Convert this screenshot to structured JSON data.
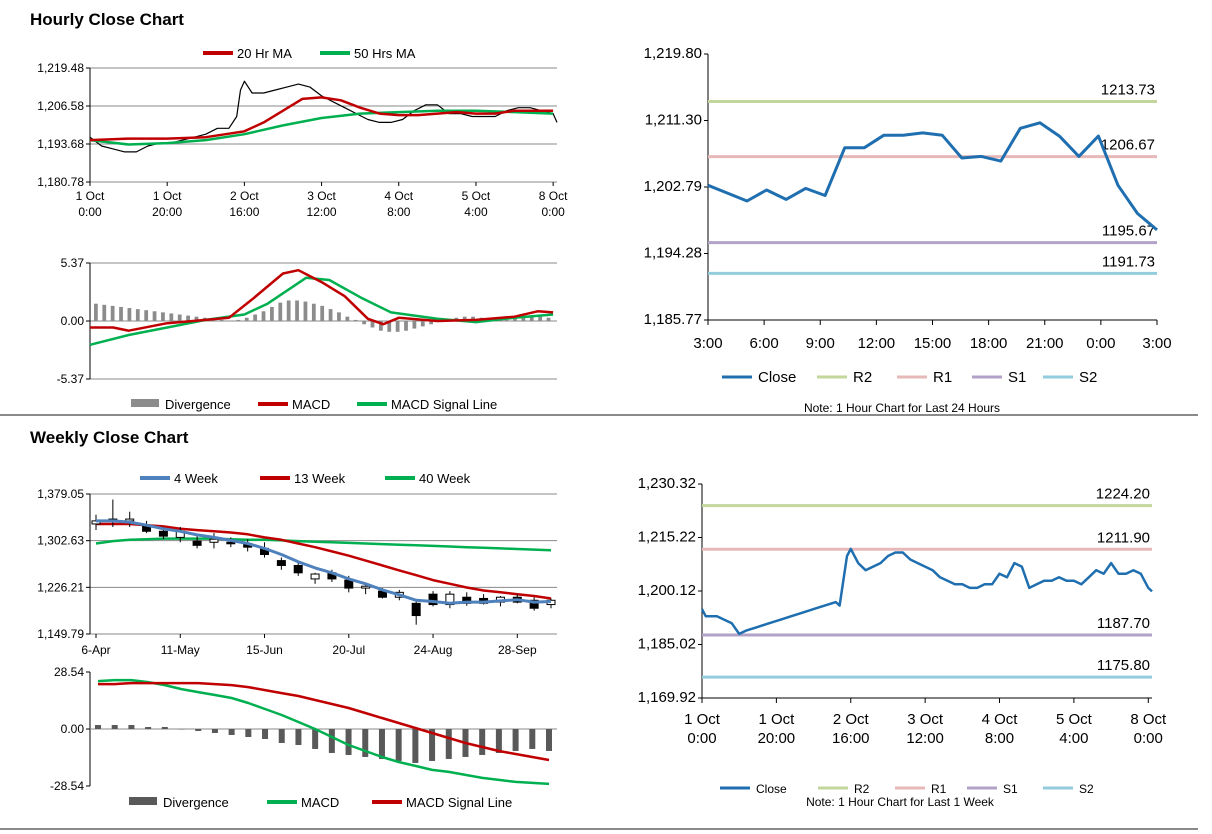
{
  "sections": {
    "hourly_title": "Hourly Close Chart",
    "weekly_title": "Weekly Close Chart"
  },
  "colors": {
    "ma20": "#c00000",
    "ma50": "#00b050",
    "price": "#000000",
    "divergence": "#8c8c8c",
    "macd_hourly": "#c00000",
    "signal_hourly": "#00b050",
    "close": "#1f6fb0",
    "r2": "#c3d69b",
    "r1": "#e6b9b8",
    "s1": "#b3a2c7",
    "s2": "#93cddd",
    "week4": "#4f81bd",
    "week13": "#c00000",
    "week40": "#00b050",
    "macd_weekly": "#00b050",
    "signal_weekly": "#c00000",
    "divergence_weekly": "#595959",
    "grid": "#8a8a8a"
  },
  "chart_data": [
    {
      "id": "hourly_price",
      "type": "line",
      "legend": [
        "20 Hr MA",
        "50 Hrs MA"
      ],
      "yticks": [
        "1,219.48",
        "1,206.58",
        "1,193.68",
        "1,180.78"
      ],
      "ylim": [
        1180.78,
        1219.48
      ],
      "xticks": [
        [
          "1 Oct",
          "0:00"
        ],
        [
          "1 Oct",
          "20:00"
        ],
        [
          "2 Oct",
          "16:00"
        ],
        [
          "3 Oct",
          "12:00"
        ],
        [
          "4 Oct",
          "8:00"
        ],
        [
          "5 Oct",
          "4:00"
        ],
        [
          "8 Oct",
          "0:00"
        ]
      ],
      "x_hours": [
        0,
        20,
        40,
        60,
        80,
        100,
        120
      ],
      "price": [
        [
          0,
          1196
        ],
        [
          3,
          1193
        ],
        [
          6,
          1192
        ],
        [
          9,
          1191
        ],
        [
          12,
          1191
        ],
        [
          15,
          1193
        ],
        [
          18,
          1194
        ],
        [
          21,
          1194
        ],
        [
          24,
          1195
        ],
        [
          27,
          1196
        ],
        [
          30,
          1197
        ],
        [
          33,
          1199
        ],
        [
          36,
          1199
        ],
        [
          38,
          1203
        ],
        [
          39,
          1212
        ],
        [
          40,
          1215
        ],
        [
          42,
          1211
        ],
        [
          45,
          1211
        ],
        [
          48,
          1212
        ],
        [
          51,
          1213
        ],
        [
          54,
          1214
        ],
        [
          57,
          1213
        ],
        [
          60,
          1210
        ],
        [
          63,
          1208
        ],
        [
          66,
          1206
        ],
        [
          69,
          1204
        ],
        [
          72,
          1202
        ],
        [
          75,
          1201
        ],
        [
          78,
          1201
        ],
        [
          81,
          1202
        ],
        [
          84,
          1205
        ],
        [
          87,
          1207
        ],
        [
          90,
          1207
        ],
        [
          93,
          1204
        ],
        [
          96,
          1204
        ],
        [
          99,
          1203
        ],
        [
          102,
          1203
        ],
        [
          105,
          1203
        ],
        [
          108,
          1205
        ],
        [
          111,
          1206
        ],
        [
          114,
          1206
        ],
        [
          117,
          1205
        ],
        [
          120,
          1204
        ],
        [
          121,
          1201
        ]
      ],
      "ma20": [
        [
          0,
          1195
        ],
        [
          10,
          1195.5
        ],
        [
          20,
          1195.5
        ],
        [
          30,
          1196
        ],
        [
          40,
          1198
        ],
        [
          45,
          1201
        ],
        [
          50,
          1205
        ],
        [
          55,
          1209
        ],
        [
          60,
          1209.5
        ],
        [
          65,
          1208.5
        ],
        [
          70,
          1206
        ],
        [
          75,
          1204
        ],
        [
          80,
          1203.5
        ],
        [
          85,
          1203.5
        ],
        [
          90,
          1204
        ],
        [
          95,
          1204.5
        ],
        [
          100,
          1204
        ],
        [
          105,
          1204
        ],
        [
          110,
          1205
        ],
        [
          115,
          1205
        ],
        [
          120,
          1205
        ]
      ],
      "ma50": [
        [
          0,
          1195
        ],
        [
          10,
          1193.5
        ],
        [
          20,
          1194
        ],
        [
          30,
          1195
        ],
        [
          40,
          1197
        ],
        [
          50,
          1200
        ],
        [
          60,
          1202.5
        ],
        [
          70,
          1204
        ],
        [
          80,
          1204.5
        ],
        [
          90,
          1205
        ],
        [
          100,
          1205
        ],
        [
          110,
          1204.5
        ],
        [
          120,
          1204
        ]
      ]
    },
    {
      "id": "hourly_macd",
      "type": "bar+line",
      "legend": [
        "Divergence",
        "MACD",
        "MACD Signal Line"
      ],
      "yticks": [
        "5.37",
        "0.00",
        "-5.37"
      ],
      "ylim": [
        -5.37,
        5.37
      ],
      "divergence": [
        1.6,
        1.5,
        1.4,
        1.3,
        1.2,
        1.1,
        1.0,
        0.9,
        0.8,
        0.7,
        0.6,
        0.5,
        0.4,
        0.3,
        0.2,
        0.1,
        0,
        0.1,
        0.3,
        0.6,
        0.9,
        1.3,
        1.7,
        1.9,
        1.9,
        1.8,
        1.6,
        1.4,
        1.1,
        0.8,
        0.4,
        0.1,
        -0.3,
        -0.6,
        -0.9,
        -1.0,
        -1.0,
        -0.9,
        -0.7,
        -0.5,
        -0.3,
        -0.1,
        0.1,
        0.3,
        0.4,
        0.4,
        0.3,
        0.2,
        0.1,
        0.1,
        0.2,
        0.3,
        0.4,
        0.4,
        0.3
      ],
      "macd": [
        [
          0,
          -0.6
        ],
        [
          6,
          -0.6
        ],
        [
          10,
          -0.9
        ],
        [
          20,
          -0.2
        ],
        [
          30,
          0.1
        ],
        [
          36,
          0.3
        ],
        [
          42,
          2.0
        ],
        [
          50,
          4.4
        ],
        [
          54,
          4.7
        ],
        [
          60,
          3.6
        ],
        [
          66,
          2.3
        ],
        [
          72,
          0.2
        ],
        [
          76,
          -0.3
        ],
        [
          80,
          0.3
        ],
        [
          90,
          0.0
        ],
        [
          100,
          0.1
        ],
        [
          110,
          0.4
        ],
        [
          116,
          0.9
        ],
        [
          120,
          0.8
        ]
      ],
      "signal": [
        [
          0,
          -2.2
        ],
        [
          10,
          -1.3
        ],
        [
          20,
          -0.6
        ],
        [
          30,
          0.1
        ],
        [
          40,
          0.6
        ],
        [
          46,
          1.6
        ],
        [
          56,
          4.0
        ],
        [
          62,
          3.8
        ],
        [
          70,
          2.2
        ],
        [
          78,
          0.8
        ],
        [
          90,
          0.2
        ],
        [
          100,
          -0.1
        ],
        [
          110,
          0.3
        ],
        [
          120,
          0.6
        ]
      ]
    },
    {
      "id": "hourly_close",
      "type": "line",
      "yticks": [
        "1,219.80",
        "1,211.30",
        "1,202.79",
        "1,194.28",
        "1,185.77"
      ],
      "ylim": [
        1185.77,
        1219.8
      ],
      "xticks": [
        "3:00",
        "6:00",
        "9:00",
        "12:00",
        "15:00",
        "18:00",
        "21:00",
        "0:00",
        "3:00"
      ],
      "close": [
        1203.0,
        1202.0,
        1201.0,
        1202.4,
        1201.2,
        1202.6,
        1201.7,
        1207.8,
        1207.8,
        1209.4,
        1209.4,
        1209.7,
        1209.4,
        1206.5,
        1206.7,
        1206.1,
        1210.3,
        1211.0,
        1209.3,
        1206.7,
        1209.3,
        1203.0,
        1199.4,
        1197.3
      ],
      "levels": {
        "r2": "1213.73",
        "r1": "1206.67",
        "s1": "1195.67",
        "s2": "1191.73"
      },
      "legend": [
        "Close",
        "R2",
        "R1",
        "S1",
        "S2"
      ],
      "note": "Note: 1 Hour Chart for Last 24 Hours"
    },
    {
      "id": "weekly_price",
      "type": "line+candlestick",
      "legend": [
        "4 Week",
        "13 Week",
        "40 Week"
      ],
      "yticks": [
        "1,379.05",
        "1,302.63",
        "1,226.21",
        "1,149.79"
      ],
      "ylim": [
        1149.79,
        1379.05
      ],
      "xticks": [
        "6-Apr",
        "11-May",
        "15-Jun",
        "20-Jul",
        "24-Aug",
        "28-Sep"
      ],
      "candles": [
        [
          1330,
          1345,
          1320,
          1335
        ],
        [
          1335,
          1370,
          1325,
          1338
        ],
        [
          1335,
          1350,
          1325,
          1338
        ],
        [
          1328,
          1335,
          1315,
          1318
        ],
        [
          1318,
          1325,
          1305,
          1310
        ],
        [
          1308,
          1325,
          1300,
          1318
        ],
        [
          1302,
          1310,
          1290,
          1295
        ],
        [
          1300,
          1315,
          1290,
          1305
        ],
        [
          1300,
          1308,
          1292,
          1298
        ],
        [
          1298,
          1305,
          1285,
          1292
        ],
        [
          1290,
          1300,
          1275,
          1280
        ],
        [
          1270,
          1275,
          1255,
          1262
        ],
        [
          1262,
          1268,
          1245,
          1250
        ],
        [
          1240,
          1250,
          1232,
          1248
        ],
        [
          1250,
          1255,
          1235,
          1240
        ],
        [
          1238,
          1245,
          1218,
          1225
        ],
        [
          1225,
          1232,
          1215,
          1228
        ],
        [
          1220,
          1225,
          1208,
          1210
        ],
        [
          1210,
          1222,
          1205,
          1218
        ],
        [
          1200,
          1205,
          1165,
          1180
        ],
        [
          1215,
          1220,
          1195,
          1198
        ],
        [
          1198,
          1220,
          1192,
          1215
        ],
        [
          1210,
          1218,
          1196,
          1200
        ],
        [
          1208,
          1215,
          1198,
          1200
        ],
        [
          1202,
          1212,
          1195,
          1210
        ],
        [
          1210,
          1215,
          1200,
          1202
        ],
        [
          1205,
          1210,
          1188,
          1192
        ],
        [
          1198,
          1208,
          1192,
          1205
        ]
      ],
      "week4": [
        1335,
        1335,
        1333,
        1328,
        1322,
        1318,
        1312,
        1308,
        1303,
        1298,
        1290,
        1280,
        1268,
        1258,
        1250,
        1240,
        1232,
        1222,
        1214,
        1205,
        1203,
        1200,
        1202,
        1202,
        1204,
        1206,
        1202,
        1203
      ],
      "week13": [
        1330,
        1330,
        1330,
        1328,
        1326,
        1322,
        1320,
        1318,
        1316,
        1313,
        1308,
        1304,
        1298,
        1292,
        1285,
        1278,
        1270,
        1262,
        1254,
        1246,
        1238,
        1232,
        1226,
        1221,
        1218,
        1215,
        1212,
        1208
      ],
      "week40": [
        1298,
        1302,
        1304,
        1305,
        1306,
        1306,
        1306,
        1306,
        1305,
        1304,
        1304,
        1303,
        1302,
        1301,
        1300,
        1299,
        1298,
        1297,
        1296,
        1295,
        1294,
        1293,
        1292,
        1291,
        1290,
        1289,
        1288,
        1287
      ]
    },
    {
      "id": "weekly_macd",
      "type": "bar+line",
      "legend": [
        "Divergence",
        "MACD",
        "MACD Signal Line"
      ],
      "yticks": [
        "28.54",
        "0.00",
        "-28.54"
      ],
      "ylim": [
        -28.54,
        28.54
      ],
      "divergence": [
        2,
        2,
        2,
        1,
        1,
        0,
        -1,
        -2,
        -3,
        -4,
        -5,
        -7,
        -8,
        -10,
        -12,
        -13,
        -14,
        -15,
        -16,
        -17,
        -16,
        -15,
        -14,
        -13,
        -12,
        -11,
        -10,
        -11
      ],
      "macd": [
        24,
        24.5,
        24.5,
        23.5,
        22,
        20,
        18.5,
        17,
        15.5,
        13,
        10,
        7,
        3.5,
        0,
        -4,
        -8,
        -11,
        -14,
        -16.5,
        -18.5,
        -20.5,
        -21.5,
        -23,
        -24.5,
        -25.5,
        -26.5,
        -27,
        -27.5
      ],
      "signal": [
        22.5,
        22.5,
        23,
        23,
        23,
        23,
        23,
        22.5,
        22,
        21,
        19.5,
        18,
        16.5,
        14.5,
        12.5,
        10.5,
        8,
        5.5,
        3,
        0.5,
        -2,
        -4.5,
        -7,
        -9,
        -11,
        -12.5,
        -14,
        -15.5
      ]
    },
    {
      "id": "weekly_close",
      "type": "line",
      "yticks": [
        "1,230.32",
        "1,215.22",
        "1,200.12",
        "1,185.02",
        "1,169.92"
      ],
      "ylim": [
        1169.92,
        1230.32
      ],
      "xticks": [
        [
          "1 Oct",
          "0:00"
        ],
        [
          "1 Oct",
          "20:00"
        ],
        [
          "2 Oct",
          "16:00"
        ],
        [
          "3 Oct",
          "12:00"
        ],
        [
          "4 Oct",
          "8:00"
        ],
        [
          "5 Oct",
          "4:00"
        ],
        [
          "8 Oct",
          "0:00"
        ]
      ],
      "x_hours": [
        0,
        20,
        40,
        60,
        80,
        100,
        120
      ],
      "close": [
        [
          0,
          1195
        ],
        [
          1,
          1193
        ],
        [
          4,
          1193
        ],
        [
          8,
          1191
        ],
        [
          10,
          1188
        ],
        [
          12,
          1189
        ],
        [
          15,
          1190
        ],
        [
          18,
          1191
        ],
        [
          21,
          1192
        ],
        [
          24,
          1193
        ],
        [
          27,
          1194
        ],
        [
          30,
          1195
        ],
        [
          33,
          1196
        ],
        [
          36,
          1197
        ],
        [
          37,
          1196
        ],
        [
          38,
          1203
        ],
        [
          39,
          1210
        ],
        [
          40,
          1212
        ],
        [
          42,
          1208
        ],
        [
          44,
          1206
        ],
        [
          46,
          1207
        ],
        [
          48,
          1208
        ],
        [
          50,
          1210
        ],
        [
          52,
          1211
        ],
        [
          54,
          1211
        ],
        [
          56,
          1209
        ],
        [
          58,
          1208
        ],
        [
          60,
          1207
        ],
        [
          62,
          1206
        ],
        [
          64,
          1204
        ],
        [
          66,
          1203
        ],
        [
          68,
          1202
        ],
        [
          70,
          1202
        ],
        [
          72,
          1201
        ],
        [
          74,
          1201
        ],
        [
          76,
          1202
        ],
        [
          78,
          1202
        ],
        [
          80,
          1205
        ],
        [
          82,
          1204
        ],
        [
          84,
          1208
        ],
        [
          86,
          1207
        ],
        [
          88,
          1201
        ],
        [
          90,
          1202
        ],
        [
          92,
          1203
        ],
        [
          94,
          1203
        ],
        [
          96,
          1204
        ],
        [
          98,
          1203
        ],
        [
          100,
          1203
        ],
        [
          102,
          1202
        ],
        [
          104,
          1204
        ],
        [
          106,
          1206
        ],
        [
          108,
          1205
        ],
        [
          110,
          1208
        ],
        [
          112,
          1205
        ],
        [
          114,
          1205
        ],
        [
          116,
          1206
        ],
        [
          118,
          1205
        ],
        [
          120,
          1201
        ],
        [
          121,
          1200
        ]
      ],
      "levels": {
        "r2": "1224.20",
        "r1": "1211.90",
        "s1": "1187.70",
        "s2": "1175.80"
      },
      "legend": [
        "Close",
        "R2",
        "R1",
        "S1",
        "S2"
      ],
      "note": "Note: 1 Hour Chart for Last 1 Week"
    }
  ]
}
